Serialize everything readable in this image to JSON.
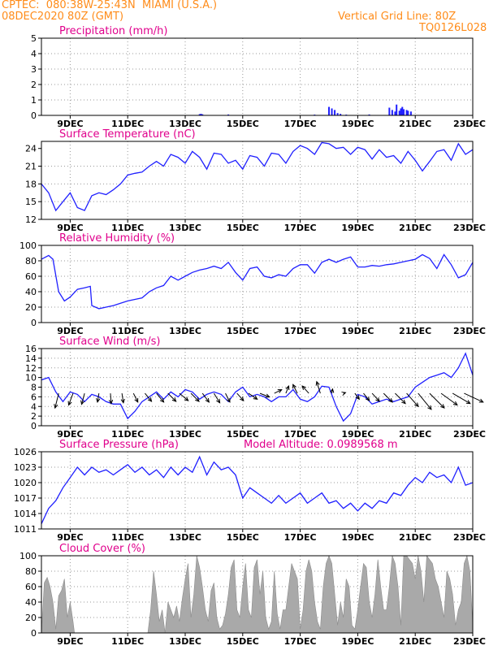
{
  "header": {
    "institution": "CPTEC:",
    "location_coords": "080:38W-25:43N",
    "location_name": "MIAMI (U.S.A.)",
    "run_date": "08DEC2020 80Z (GMT)",
    "grid_line_label": "Vertical Grid Line: 80Z",
    "model_code": "TQ0126L028"
  },
  "colors": {
    "header_text": "#ff8c1a",
    "title": "#e0008c",
    "series_line": "#2020ff",
    "cloud_fill": "#a9a9a9",
    "wind_arrow": "#000000"
  },
  "x_axis": {
    "tick_labels": [
      "9DEC",
      "11DEC",
      "13DEC",
      "15DEC",
      "17DEC",
      "19DEC",
      "21DEC",
      "23DEC"
    ],
    "tick_days": [
      9,
      11,
      13,
      15,
      17,
      19,
      21,
      23
    ],
    "range_days": [
      8,
      23
    ]
  },
  "chart_data": [
    {
      "id": "precip",
      "type": "bar",
      "title": "Precipitation (mm/h)",
      "ylim": [
        0,
        5
      ],
      "yticks": [
        0,
        1,
        2,
        3,
        4,
        5
      ],
      "x": [
        13.5,
        13.55,
        13.6,
        14.5,
        17.5,
        18.0,
        18.1,
        18.2,
        18.3,
        18.4,
        18.6,
        19.4,
        20.1,
        20.2,
        20.3,
        20.35,
        20.45,
        20.5,
        20.55,
        20.6,
        20.7,
        20.75,
        20.85
      ],
      "values": [
        0.08,
        0.1,
        0.07,
        0.06,
        0.05,
        0.55,
        0.45,
        0.35,
        0.15,
        0.1,
        0.05,
        0.06,
        0.5,
        0.35,
        0.25,
        0.7,
        0.3,
        0.45,
        0.55,
        0.4,
        0.35,
        0.3,
        0.25
      ]
    },
    {
      "id": "temp",
      "type": "line",
      "title": "Surface Temperature (nC)",
      "ylim": [
        12,
        25.2
      ],
      "yticks": [
        12,
        15,
        18,
        21,
        24
      ],
      "ytick_labels": [
        "12",
        "15",
        "18",
        "21",
        "24"
      ],
      "x": [
        8,
        8.25,
        8.5,
        8.75,
        9,
        9.25,
        9.5,
        9.75,
        10,
        10.25,
        10.5,
        10.75,
        11,
        11.25,
        11.5,
        11.75,
        12,
        12.25,
        12.5,
        12.75,
        13,
        13.25,
        13.5,
        13.75,
        14,
        14.25,
        14.5,
        14.75,
        15,
        15.25,
        15.5,
        15.75,
        16,
        16.25,
        16.5,
        16.75,
        17,
        17.25,
        17.5,
        17.75,
        18,
        18.25,
        18.5,
        18.75,
        19,
        19.25,
        19.5,
        19.75,
        20,
        20.25,
        20.5,
        20.75,
        21,
        21.25,
        21.5,
        21.75,
        22,
        22.25,
        22.5,
        22.75,
        23
      ],
      "values": [
        18,
        16.5,
        13.5,
        15,
        16.5,
        14,
        13.5,
        16,
        16.5,
        16.2,
        17,
        18,
        19.5,
        19.8,
        20,
        21,
        21.8,
        21,
        23,
        22.5,
        21.5,
        23.5,
        22.5,
        20.5,
        23.2,
        23,
        21.5,
        22,
        20.5,
        22.8,
        22.5,
        21,
        23.2,
        23,
        21.5,
        23.5,
        24.5,
        24,
        23,
        25,
        24.8,
        24,
        24.2,
        23,
        24.2,
        23.8,
        22.2,
        23.8,
        22.5,
        22.8,
        21.5,
        23.5,
        22,
        20.2,
        21.8,
        23.5,
        23.8,
        22,
        24.8,
        23,
        23.8
      ]
    },
    {
      "id": "rh",
      "type": "line",
      "title": "Relative Humidity (%)",
      "ylim": [
        0,
        100
      ],
      "yticks": [
        0,
        20,
        40,
        60,
        80,
        100
      ],
      "x": [
        8,
        8.25,
        8.4,
        8.6,
        8.8,
        9,
        9.25,
        9.5,
        9.7,
        9.75,
        10,
        10.25,
        10.5,
        10.75,
        11,
        11.25,
        11.5,
        11.75,
        12,
        12.25,
        12.5,
        12.75,
        13,
        13.25,
        13.5,
        13.75,
        14,
        14.25,
        14.5,
        14.75,
        15,
        15.25,
        15.5,
        15.75,
        16,
        16.25,
        16.5,
        16.75,
        17,
        17.25,
        17.5,
        17.75,
        18,
        18.25,
        18.5,
        18.75,
        19,
        19.25,
        19.5,
        19.75,
        20,
        20.25,
        20.5,
        20.75,
        21,
        21.25,
        21.5,
        21.75,
        22,
        22.25,
        22.5,
        22.75,
        23
      ],
      "values": [
        82,
        87,
        82,
        40,
        28,
        33,
        43,
        45,
        47,
        22,
        18,
        20,
        22,
        25,
        28,
        30,
        32,
        40,
        45,
        48,
        60,
        55,
        60,
        65,
        68,
        70,
        73,
        70,
        78,
        65,
        55,
        70,
        72,
        60,
        58,
        62,
        60,
        70,
        75,
        75,
        64,
        78,
        82,
        78,
        82,
        85,
        72,
        72,
        74,
        73,
        75,
        76,
        78,
        80,
        82,
        88,
        83,
        70,
        88,
        75,
        58,
        62,
        78
      ]
    },
    {
      "id": "wind",
      "type": "line",
      "title": "Surface Wind (m/s)",
      "ylim": [
        0,
        16
      ],
      "yticks": [
        0,
        2,
        4,
        6,
        8,
        10,
        12,
        14,
        16
      ],
      "x": [
        8,
        8.25,
        8.5,
        8.75,
        9,
        9.25,
        9.5,
        9.75,
        10,
        10.25,
        10.5,
        10.75,
        11,
        11.25,
        11.5,
        11.75,
        12,
        12.25,
        12.5,
        12.75,
        13,
        13.25,
        13.5,
        13.75,
        14,
        14.25,
        14.5,
        14.75,
        15,
        15.25,
        15.5,
        15.75,
        16,
        16.25,
        16.5,
        16.75,
        17,
        17.25,
        17.5,
        17.75,
        18,
        18.25,
        18.5,
        18.75,
        19,
        19.25,
        19.5,
        19.75,
        20,
        20.25,
        20.5,
        20.75,
        21,
        21.25,
        21.5,
        21.75,
        22,
        22.25,
        22.5,
        22.75,
        23
      ],
      "values": [
        9.5,
        10,
        7,
        5,
        7,
        6.5,
        5,
        6.5,
        6,
        5,
        4.5,
        4.5,
        1.5,
        3,
        5,
        6,
        7,
        5.5,
        7,
        6,
        7.5,
        7,
        5.5,
        6.5,
        7,
        6.5,
        5,
        7,
        8,
        6,
        6.5,
        6,
        5,
        6,
        6,
        7.5,
        5.5,
        5,
        6,
        8.2,
        8,
        4,
        1,
        2.5,
        6.5,
        6,
        4.5,
        5,
        5.5,
        5,
        5.5,
        6,
        8,
        9,
        10,
        10.5,
        11,
        10,
        12,
        15,
        10.5
      ],
      "arrows": {
        "x": [
          8.6,
          9.1,
          9.5,
          10.0,
          10.4,
          10.8,
          11.2,
          11.6,
          12.0,
          12.4,
          12.8,
          13.2,
          13.6,
          14.0,
          14.4,
          14.8,
          15.2,
          15.6,
          16.1,
          16.5,
          16.9,
          17.3,
          17.7,
          18.1,
          18.5,
          18.9,
          19.2,
          19.5,
          19.9,
          20.3,
          20.7,
          21.1,
          21.5,
          21.9,
          22.3,
          22.7
        ],
        "u": [
          -0.5,
          -0.6,
          -0.4,
          -0.2,
          0.1,
          0.2,
          0.6,
          0.9,
          1.0,
          1.1,
          1.2,
          1.1,
          0.9,
          0.8,
          0.6,
          0.9,
          1.2,
          1.3,
          1.0,
          0.4,
          -0.6,
          -0.9,
          -0.5,
          0.1,
          0.3,
          0.6,
          0.8,
          1.0,
          1.2,
          1.4,
          1.6,
          1.8,
          2.0,
          2.2,
          2.4,
          2.6
        ],
        "v": [
          -2.0,
          -1.6,
          -1.5,
          -1.2,
          -1.4,
          -1.3,
          -1.2,
          -1.1,
          -1.2,
          -1.1,
          -1.0,
          -1.1,
          -1.2,
          -1.3,
          -1.2,
          -1.0,
          -0.8,
          -0.5,
          0.5,
          1.0,
          1.2,
          1.0,
          1.6,
          0.6,
          0.1,
          -0.8,
          -1.0,
          -1.1,
          -1.2,
          -1.4,
          -1.8,
          -2.2,
          -2.0,
          -1.6,
          -1.4,
          -1.2
        ]
      }
    },
    {
      "id": "pres",
      "type": "line",
      "title": "Surface Pressure (hPa)",
      "subtitle": "Model Altitude: 0.0989568  m",
      "ylim": [
        1011,
        1026
      ],
      "yticks": [
        1011,
        1014,
        1017,
        1020,
        1023,
        1026
      ],
      "x": [
        8,
        8.25,
        8.5,
        8.75,
        9,
        9.25,
        9.5,
        9.75,
        10,
        10.25,
        10.5,
        10.75,
        11,
        11.25,
        11.5,
        11.75,
        12,
        12.25,
        12.5,
        12.75,
        13,
        13.25,
        13.5,
        13.75,
        14,
        14.25,
        14.5,
        14.75,
        15,
        15.25,
        15.5,
        15.75,
        16,
        16.25,
        16.5,
        16.75,
        17,
        17.25,
        17.5,
        17.75,
        18,
        18.25,
        18.5,
        18.75,
        19,
        19.25,
        19.5,
        19.75,
        20,
        20.25,
        20.5,
        20.75,
        21,
        21.25,
        21.5,
        21.75,
        22,
        22.25,
        22.5,
        22.75,
        23
      ],
      "values": [
        1012,
        1015,
        1016.5,
        1019,
        1021,
        1023,
        1021.5,
        1023,
        1022,
        1022.5,
        1021.5,
        1022.5,
        1023.5,
        1022,
        1023,
        1021.5,
        1022.5,
        1021,
        1023,
        1021.5,
        1023,
        1022,
        1025,
        1021.5,
        1024,
        1022.5,
        1023,
        1021.5,
        1017,
        1019,
        1018,
        1017,
        1016,
        1017.5,
        1016,
        1017,
        1018,
        1016,
        1017,
        1018,
        1016,
        1016.5,
        1015,
        1016,
        1014.5,
        1016,
        1015,
        1016.5,
        1016,
        1018,
        1017.5,
        1019.5,
        1021,
        1020,
        1022,
        1021,
        1021.5,
        1020,
        1023,
        1019.5,
        1020
      ]
    },
    {
      "id": "cloud",
      "type": "area",
      "title": "Cloud Cover (%)",
      "ylim": [
        0,
        100
      ],
      "yticks": [
        0,
        20,
        40,
        60,
        80,
        100
      ],
      "x": [
        8,
        8.1,
        8.2,
        8.3,
        8.4,
        8.5,
        8.6,
        8.7,
        8.8,
        8.9,
        9.0,
        9.1,
        9.15,
        11.7,
        11.8,
        11.9,
        12.0,
        12.1,
        12.2,
        12.3,
        12.4,
        12.5,
        12.6,
        12.7,
        12.8,
        12.9,
        13.0,
        13.1,
        13.2,
        13.3,
        13.4,
        13.5,
        13.6,
        13.7,
        13.8,
        13.9,
        14.0,
        14.1,
        14.2,
        14.3,
        14.4,
        14.5,
        14.6,
        14.7,
        14.8,
        14.9,
        15.0,
        15.1,
        15.2,
        15.3,
        15.4,
        15.5,
        15.6,
        15.7,
        15.8,
        15.9,
        16.0,
        16.1,
        16.2,
        16.3,
        16.4,
        16.5,
        16.6,
        16.7,
        16.8,
        16.9,
        17.0,
        17.1,
        17.2,
        17.3,
        17.4,
        17.5,
        17.6,
        17.7,
        17.8,
        17.9,
        18.0,
        18.1,
        18.2,
        18.3,
        18.4,
        18.5,
        18.6,
        18.7,
        18.8,
        18.9,
        19.0,
        19.1,
        19.2,
        19.3,
        19.4,
        19.5,
        19.6,
        19.7,
        19.8,
        19.9,
        20.0,
        20.1,
        20.2,
        20.3,
        20.4,
        20.5,
        20.6,
        20.7,
        20.8,
        20.9,
        21.0,
        21.1,
        21.2,
        21.3,
        21.4,
        21.5,
        21.6,
        21.7,
        21.8,
        21.9,
        22.0,
        22.1,
        22.2,
        22.3,
        22.4,
        22.5,
        22.6,
        22.7,
        22.8,
        22.9,
        23.0
      ],
      "values": [
        0,
        65,
        72,
        60,
        40,
        5,
        48,
        55,
        70,
        20,
        40,
        15,
        0,
        0,
        30,
        80,
        50,
        15,
        30,
        0,
        40,
        30,
        20,
        35,
        15,
        45,
        70,
        90,
        20,
        50,
        100,
        85,
        60,
        30,
        15,
        55,
        65,
        20,
        5,
        10,
        25,
        50,
        85,
        95,
        30,
        20,
        60,
        90,
        30,
        20,
        85,
        95,
        50,
        80,
        20,
        5,
        15,
        80,
        25,
        5,
        30,
        30,
        60,
        90,
        80,
        70,
        5,
        30,
        80,
        95,
        80,
        40,
        15,
        5,
        60,
        90,
        100,
        90,
        50,
        10,
        40,
        20,
        70,
        60,
        10,
        5,
        30,
        60,
        90,
        85,
        40,
        20,
        50,
        95,
        60,
        30,
        30,
        60,
        100,
        90,
        60,
        10,
        100,
        100,
        95,
        90,
        70,
        100,
        80,
        40,
        100,
        95,
        90,
        70,
        60,
        40,
        20,
        80,
        70,
        50,
        10,
        30,
        40,
        90,
        100,
        80,
        10
      ]
    }
  ]
}
